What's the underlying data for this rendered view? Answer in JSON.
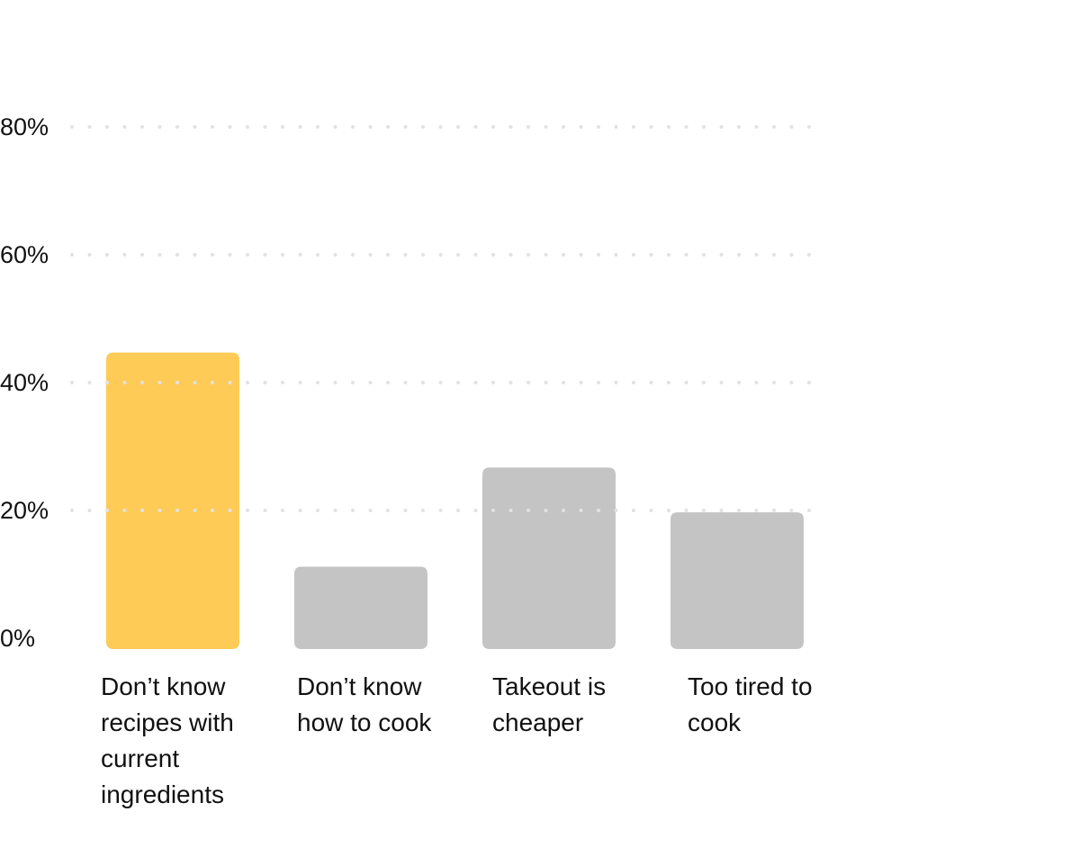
{
  "chart_data": {
    "type": "bar",
    "title": "",
    "xlabel": "",
    "ylabel": "",
    "ylim": [
      0,
      80
    ],
    "yticks": [
      0,
      20,
      40,
      60,
      80
    ],
    "ytick_format": "{v}%",
    "grid": true,
    "grid_style": "dotted",
    "categories": [
      [
        "Don’t know",
        "recipes with",
        "current",
        "ingredients"
      ],
      [
        "Don’t know",
        "how to cook"
      ],
      [
        "Takeout is",
        "cheaper"
      ],
      [
        "Too tired to",
        "cook"
      ]
    ],
    "values": [
      44,
      10.5,
      26,
      19
    ],
    "colors": [
      "#FECB57",
      "#C4C4C4",
      "#C4C4C4",
      "#C4C4C4"
    ],
    "highlight_index": 0
  }
}
